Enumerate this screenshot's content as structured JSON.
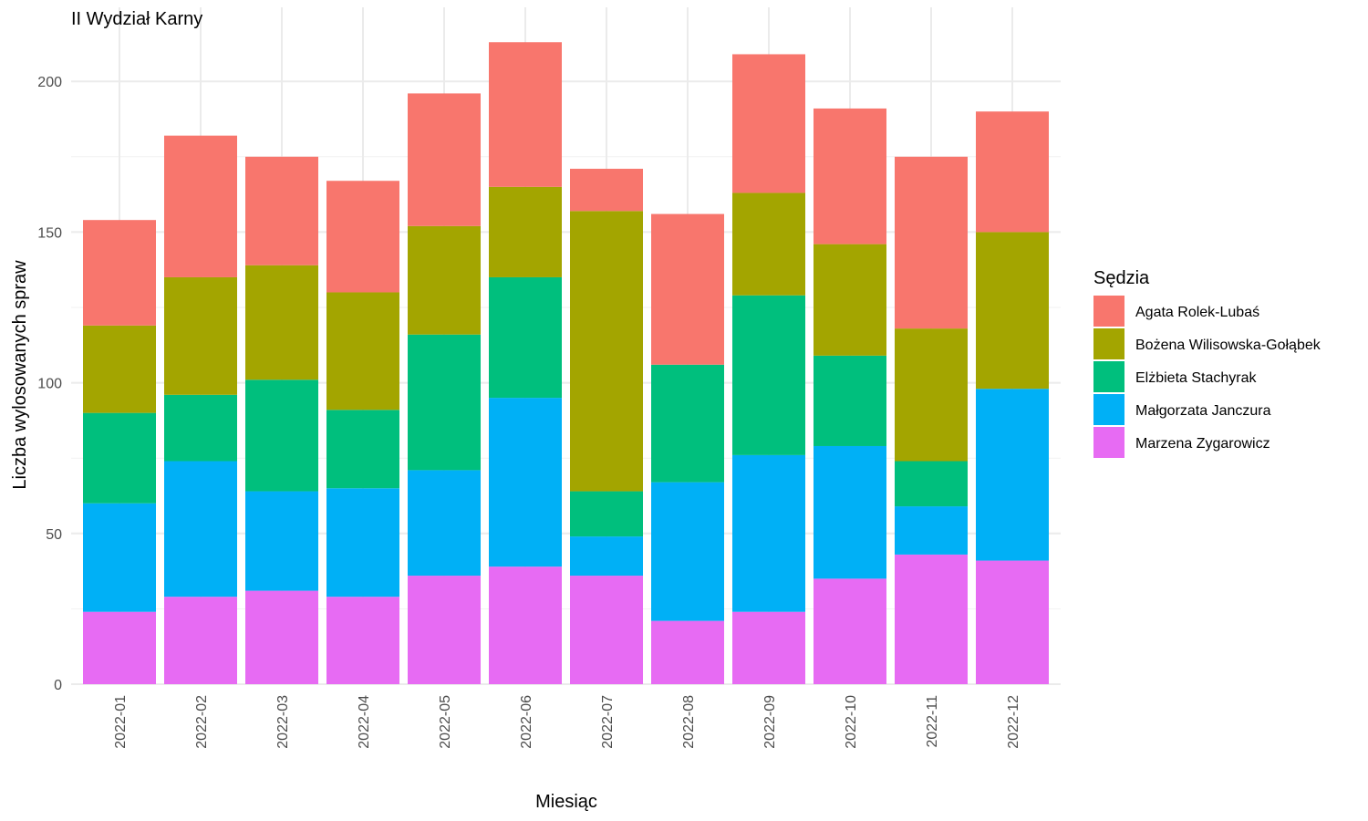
{
  "chart_data": {
    "type": "bar",
    "stacked": true,
    "title": "II Wydział Karny",
    "xlabel": "Miesiąc",
    "ylabel": "Liczba wylosowanych spraw",
    "ylim": [
      0,
      213
    ],
    "yticks": [
      0,
      50,
      100,
      150,
      200
    ],
    "grid": true,
    "legend_title": "Sędzia",
    "legend_position": "right",
    "categories": [
      "2022-01",
      "2022-02",
      "2022-03",
      "2022-04",
      "2022-05",
      "2022-06",
      "2022-07",
      "2022-08",
      "2022-09",
      "2022-10",
      "2022-11",
      "2022-12"
    ],
    "series": [
      {
        "name": "Marzena Zygarowicz",
        "color": "#E76BF3",
        "values": [
          24,
          29,
          31,
          29,
          36,
          39,
          36,
          21,
          24,
          35,
          43,
          41
        ]
      },
      {
        "name": "Małgorzata Janczura",
        "color": "#00B0F6",
        "values": [
          36,
          45,
          33,
          36,
          35,
          56,
          13,
          46,
          52,
          44,
          16,
          57
        ]
      },
      {
        "name": "Elżbieta Stachyrak",
        "color": "#00BF7D",
        "values": [
          30,
          22,
          37,
          26,
          45,
          40,
          15,
          39,
          53,
          30,
          15,
          0
        ]
      },
      {
        "name": "Bożena Wilisowska-Gołąbek",
        "color": "#A3A500",
        "values": [
          29,
          39,
          38,
          39,
          36,
          30,
          93,
          0,
          34,
          37,
          44,
          52
        ]
      },
      {
        "name": "Agata Rolek-Lubaś",
        "color": "#F8766D",
        "values": [
          35,
          47,
          36,
          37,
          44,
          48,
          14,
          50,
          46,
          45,
          57,
          40
        ]
      }
    ],
    "legend_order": [
      "Agata Rolek-Lubaś",
      "Bożena Wilisowska-Gołąbek",
      "Elżbieta Stachyrak",
      "Małgorzata Janczura",
      "Marzena Zygarowicz"
    ]
  }
}
